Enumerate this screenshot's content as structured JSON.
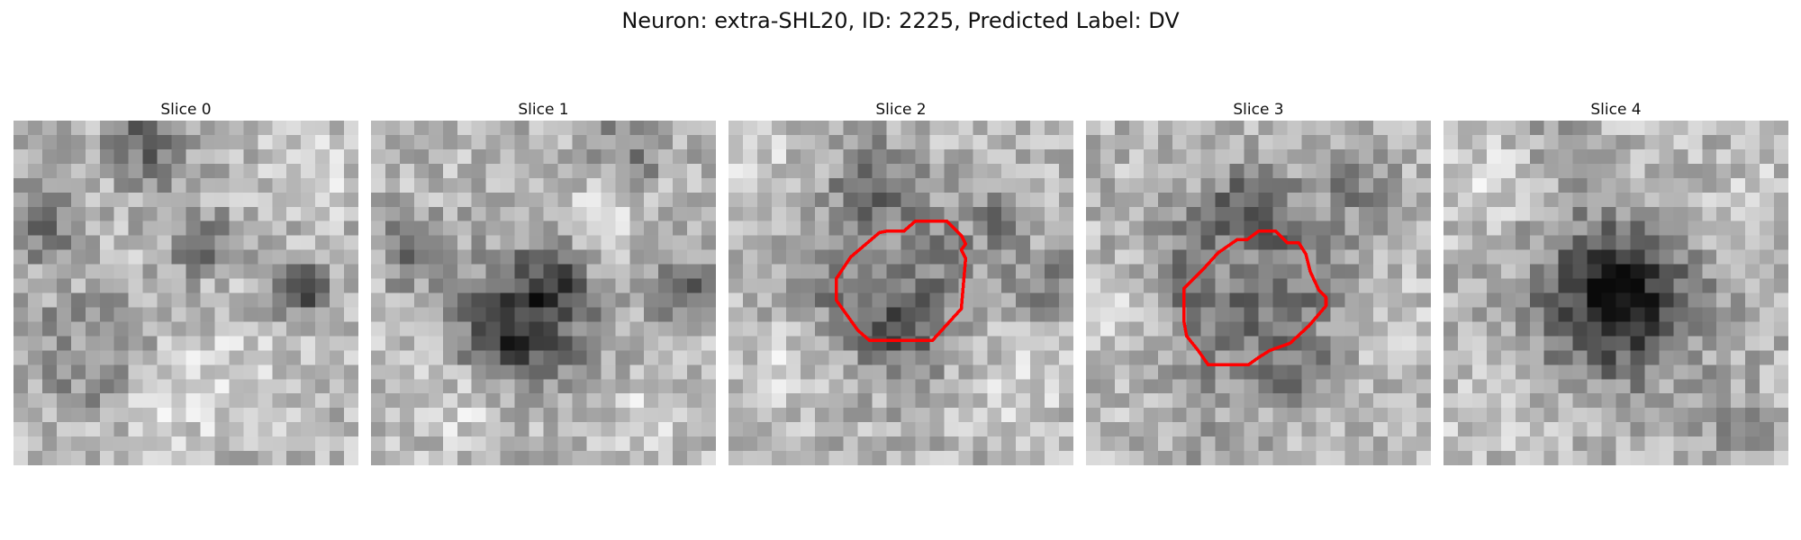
{
  "figure": {
    "title": "Neuron: extra-SHL20, ID: 2225, Predicted Label: DV"
  },
  "panels": [
    {
      "label": "Slice 0"
    },
    {
      "label": "Slice 1"
    },
    {
      "label": "Slice 2"
    },
    {
      "label": "Slice 3"
    },
    {
      "label": "Slice 4"
    }
  ],
  "colors": {
    "background": "#ffffff",
    "contour": "#ff0000",
    "colormap": "gray"
  }
}
